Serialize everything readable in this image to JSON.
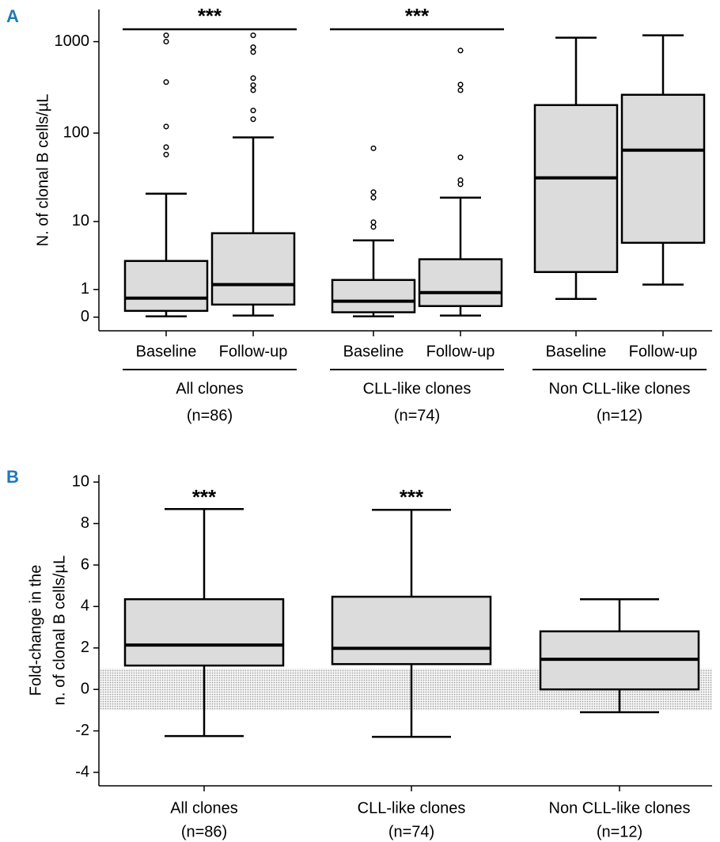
{
  "chart_data": [
    {
      "type": "box",
      "panel": "A",
      "ylabel": "N. of clonal B cells/µL",
      "yscale": "log1p",
      "ylim": [
        -0.29,
        2240
      ],
      "yticks": [
        0,
        1,
        10,
        100,
        1000
      ],
      "groups": [
        {
          "lines": [
            "All clones",
            "(n=86)"
          ],
          "significance": "***",
          "boxes": [
            {
              "label": "Baseline",
              "stats": [
                0.02,
                0.17,
                0.61,
                3.09,
                21.1
              ],
              "outliers": [
                1172,
                1000,
                362,
                118,
                70,
                58
              ]
            },
            {
              "label": "Follow-up",
              "stats": [
                0.04,
                0.37,
                1.26,
                7.2,
                89.6
              ],
              "outliers": [
                1172,
                870,
                770,
                400,
                335,
                295,
                177,
                142
              ]
            }
          ]
        },
        {
          "lines": [
            "CLL-like clones",
            "(n=74)"
          ],
          "significance": "***",
          "boxes": [
            {
              "label": "Baseline",
              "stats": [
                0.02,
                0.13,
                0.49,
                1.54,
                5.86
              ],
              "outliers": [
                68,
                22,
                19,
                9.8,
                8.6
              ]
            },
            {
              "label": "Follow-up",
              "stats": [
                0.04,
                0.32,
                0.85,
                3.27,
                19
              ],
              "outliers": [
                800,
                340,
                295,
                54,
                30,
                27
              ]
            }
          ]
        },
        {
          "lines": [
            "Non CLL-like clones",
            "(n=12)"
          ],
          "boxes": [
            {
              "label": "Baseline",
              "stats": [
                0.58,
                2.1,
                31.9,
                203,
                1103
              ],
              "outliers": []
            },
            {
              "label": "Follow-up",
              "stats": [
                1.26,
                5.45,
                64.9,
                263,
                1172
              ],
              "outliers": []
            }
          ]
        }
      ]
    },
    {
      "type": "box",
      "panel": "B",
      "ylabel": [
        "Fold-change in the",
        "n. of clonal B cells/µL"
      ],
      "ylim": [
        -4.65,
        10.35
      ],
      "yticks": [
        -4,
        -2,
        0,
        2,
        4,
        6,
        8,
        10
      ],
      "reference_band": [
        -1,
        1
      ],
      "groups": [
        {
          "lines": [
            "All clones",
            "(n=86)"
          ],
          "significance": "***",
          "boxes": [
            {
              "stats": [
                -2.25,
                1.15,
                2.14,
                4.35,
                8.7
              ],
              "outliers": []
            }
          ]
        },
        {
          "lines": [
            "CLL-like clones",
            "(n=74)"
          ],
          "significance": "***",
          "boxes": [
            {
              "stats": [
                -2.29,
                1.22,
                1.98,
                4.47,
                8.66
              ],
              "outliers": []
            }
          ]
        },
        {
          "lines": [
            "Non CLL-like clones",
            "(n=12)"
          ],
          "boxes": [
            {
              "stats": [
                -1.1,
                0.0,
                1.45,
                2.8,
                4.35
              ],
              "outliers": []
            }
          ]
        }
      ]
    }
  ]
}
